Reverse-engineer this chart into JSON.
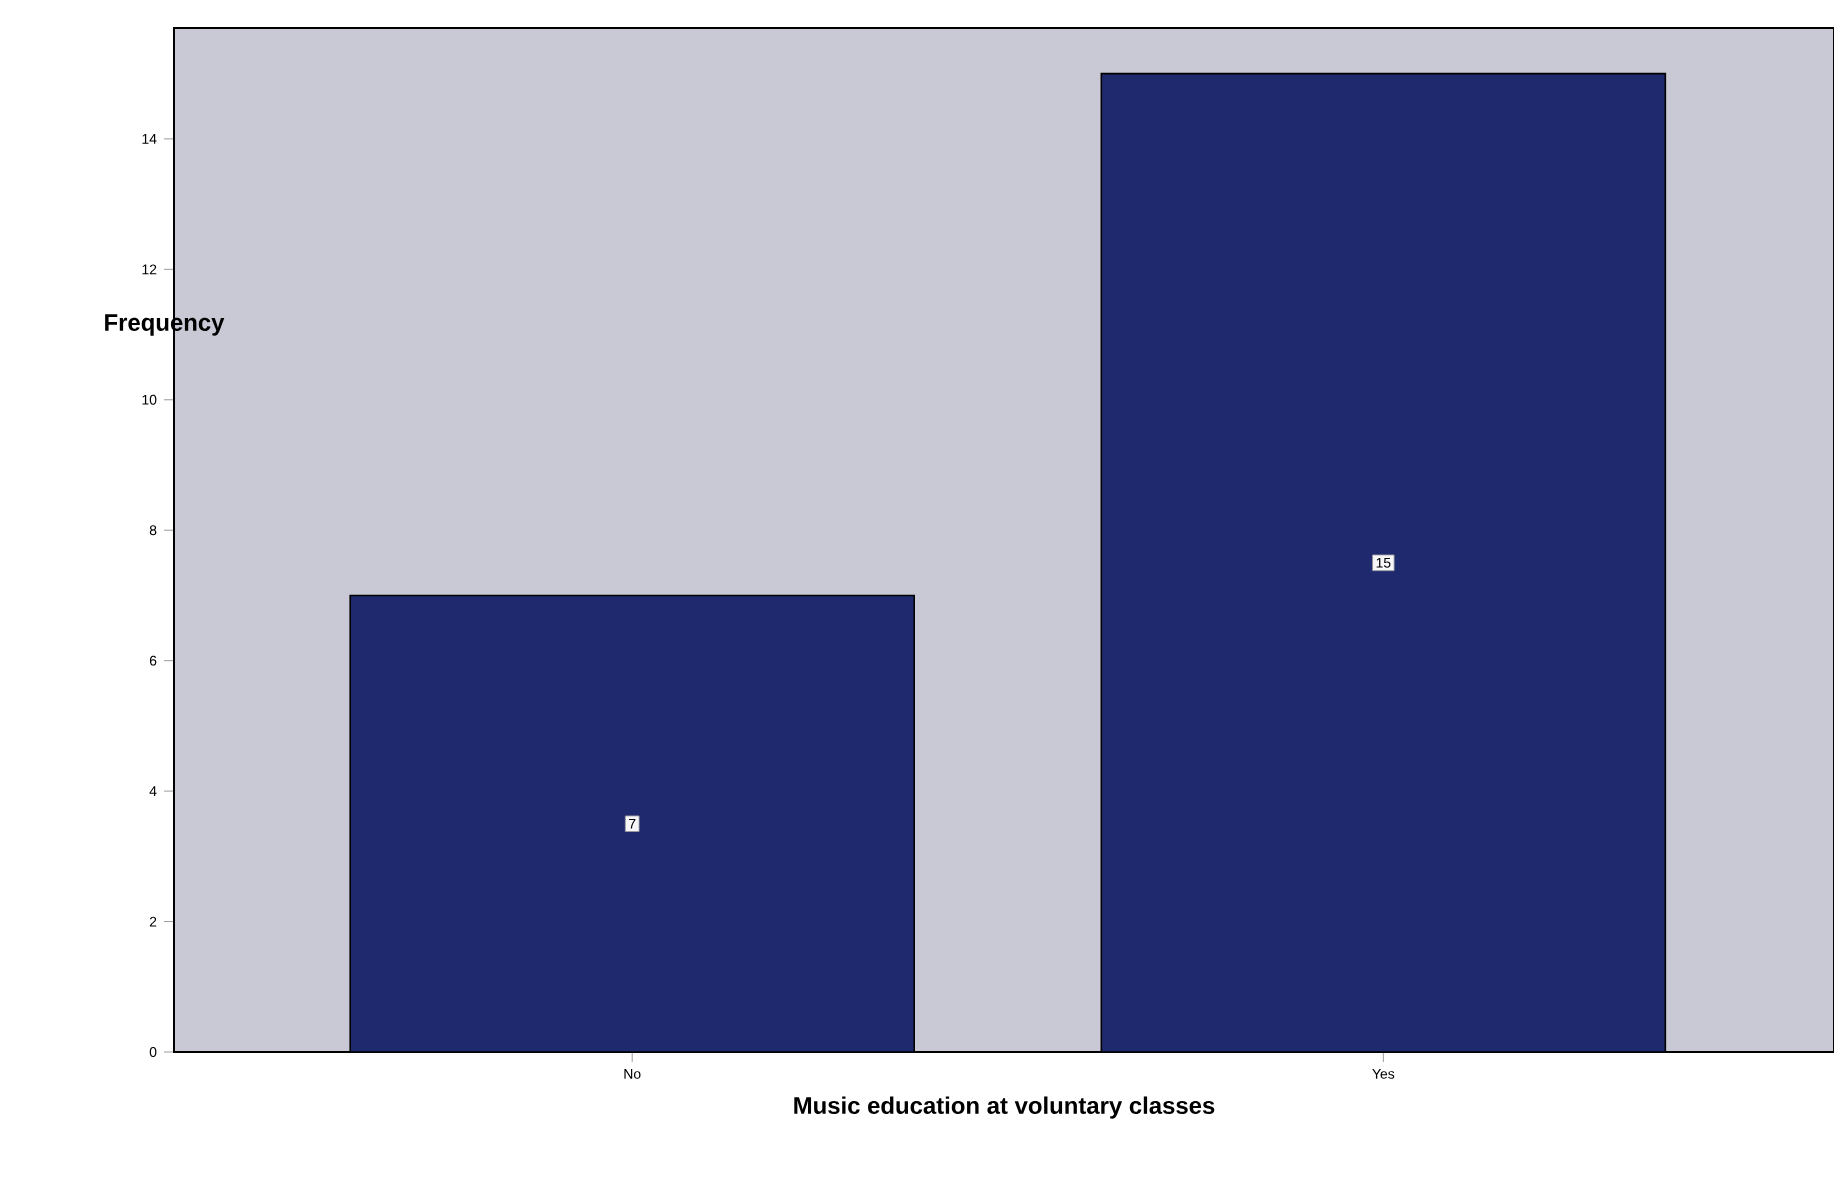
{
  "chart_data": {
    "type": "bar",
    "xlabel": "Music education at voluntary classes",
    "ylabel": "Frequency",
    "categories": [
      "No",
      "Yes"
    ],
    "values": [
      7,
      15
    ],
    "color": "#1f2a6e",
    "data_labels": true,
    "ylim": [
      0,
      15.7
    ],
    "yticks": [
      0,
      2,
      4,
      6,
      8,
      10,
      12,
      14
    ],
    "grid": false
  }
}
